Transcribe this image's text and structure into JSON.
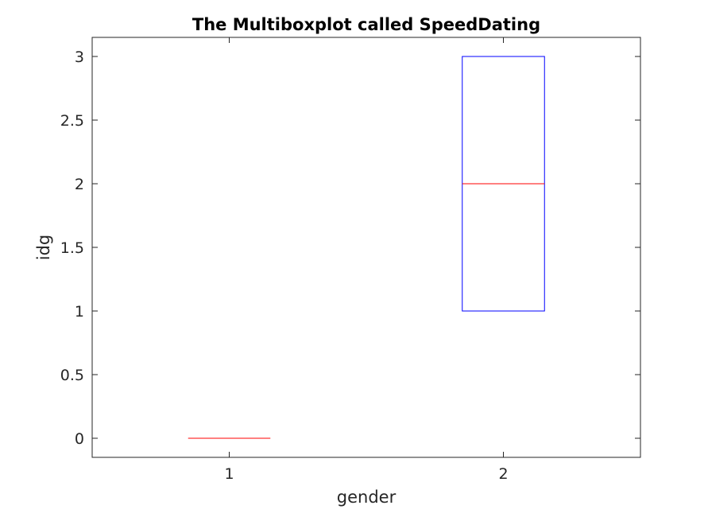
{
  "chart_data": {
    "type": "box",
    "title": "The Multiboxplot called SpeedDating",
    "xlabel": "gender",
    "ylabel": "idg",
    "categories": [
      "1",
      "2"
    ],
    "xlim": [
      0.5,
      2.5
    ],
    "ylim": [
      -0.15,
      3.15
    ],
    "yticks": [
      0,
      0.5,
      1,
      1.5,
      2,
      2.5,
      3
    ],
    "ytick_labels": [
      "0",
      "0.5",
      "1",
      "1.5",
      "2",
      "2.5",
      "3"
    ],
    "boxes": [
      {
        "category": "1",
        "q1": 0,
        "median": 0,
        "q3": 0,
        "whisker_low": 0,
        "whisker_high": 0
      },
      {
        "category": "2",
        "q1": 1,
        "median": 2,
        "q3": 3,
        "whisker_low": 1,
        "whisker_high": 3
      }
    ],
    "grid": false,
    "colors": {
      "box": "#0000ff",
      "median": "#ff0000",
      "axes": "#262626"
    }
  }
}
